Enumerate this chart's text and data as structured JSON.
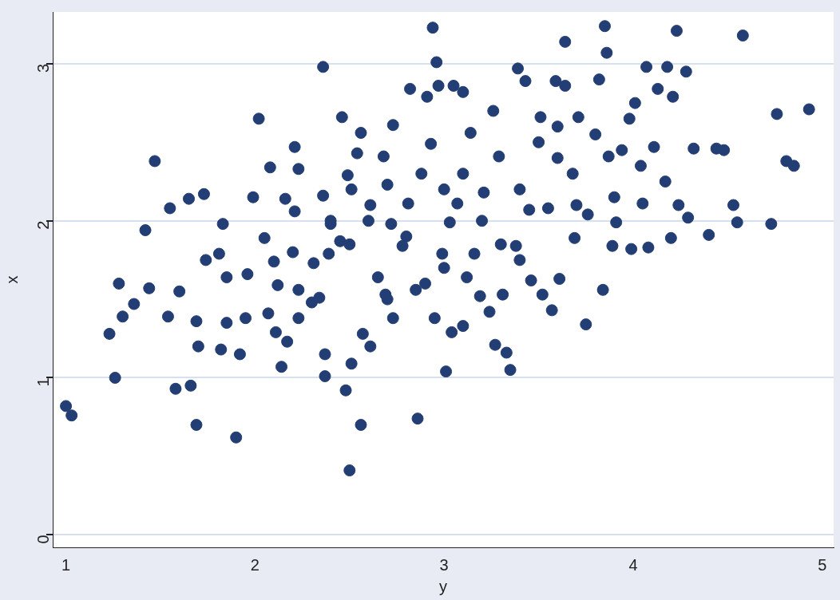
{
  "chart_data": {
    "type": "scatter",
    "xlabel": "y",
    "ylabel": "x",
    "xlim": [
      0.93,
      5.06
    ],
    "ylim": [
      -0.08,
      3.33
    ],
    "xticks": [
      1,
      2,
      3,
      4,
      5
    ],
    "yticks": [
      0,
      1,
      2,
      3
    ],
    "grid": "y",
    "marker": "circle",
    "legend": false,
    "series": [
      {
        "color": "#233e74",
        "x": [
          1.0,
          1.03,
          1.23,
          1.26,
          1.28,
          1.3,
          1.36,
          1.42,
          1.44,
          1.47,
          1.54,
          1.55,
          1.58,
          1.6,
          1.65,
          1.66,
          1.69,
          1.69,
          1.7,
          1.73,
          1.74,
          1.81,
          1.83,
          1.85,
          1.85,
          1.82,
          1.9,
          1.92,
          1.95,
          1.96,
          1.99,
          2.02,
          2.05,
          2.07,
          2.08,
          2.1,
          2.11,
          2.12,
          2.14,
          2.16,
          2.17,
          2.21,
          2.21,
          2.23,
          2.23,
          2.23,
          2.3,
          2.31,
          2.34,
          2.36,
          2.36,
          2.37,
          2.37,
          2.39,
          2.4,
          2.45,
          2.46,
          2.48,
          2.49,
          2.51,
          2.5,
          2.56,
          2.51,
          2.54,
          2.56,
          2.57,
          2.61,
          2.61,
          2.65,
          2.68,
          2.69,
          2.7,
          2.72,
          2.73,
          2.73,
          2.78,
          2.81,
          2.82,
          2.85,
          2.86,
          2.88,
          2.91,
          2.93,
          2.94,
          2.95,
          2.96,
          2.97,
          2.99,
          3.01,
          3.03,
          3.04,
          3.05,
          3.07,
          3.1,
          3.1,
          3.12,
          3.14,
          3.16,
          3.19,
          3.21,
          3.24,
          3.26,
          3.27,
          3.29,
          3.31,
          3.33,
          3.35,
          3.38,
          3.39,
          3.43,
          3.45,
          3.46,
          3.51,
          3.52,
          3.55,
          3.57,
          3.59,
          3.61,
          3.64,
          3.64,
          3.68,
          3.69,
          3.71,
          3.75,
          3.76,
          3.82,
          3.84,
          3.85,
          3.86,
          3.87,
          3.89,
          3.91,
          3.94,
          3.98,
          3.99,
          4.01,
          4.04,
          4.05,
          4.07,
          4.08,
          4.11,
          4.13,
          4.17,
          4.18,
          4.2,
          4.21,
          4.23,
          4.24,
          4.28,
          4.29,
          4.32,
          4.4,
          4.44,
          4.48,
          4.53,
          4.55,
          4.58,
          4.73,
          4.76,
          4.81,
          4.85,
          4.93,
          3.0,
          3.2,
          3.4,
          3.6,
          2.8,
          2.6,
          3.3,
          3.5,
          3.1,
          2.9,
          3.7,
          3.8,
          2.5,
          2.7,
          3.0,
          3.4,
          3.9,
          3.6,
          2.4,
          2.2
        ],
        "values": [
          0.82,
          0.76,
          1.28,
          1.0,
          1.6,
          1.39,
          1.47,
          1.94,
          1.57,
          2.38,
          1.39,
          2.08,
          0.93,
          1.55,
          2.14,
          0.95,
          0.7,
          1.36,
          1.2,
          2.17,
          1.75,
          1.79,
          1.98,
          1.64,
          1.35,
          1.18,
          0.62,
          1.15,
          1.38,
          1.66,
          2.15,
          2.65,
          1.89,
          1.41,
          2.34,
          1.74,
          1.29,
          1.59,
          1.07,
          2.14,
          1.23,
          2.06,
          2.47,
          2.33,
          1.56,
          1.38,
          1.48,
          1.73,
          1.51,
          2.98,
          2.16,
          1.15,
          1.01,
          1.79,
          1.98,
          1.87,
          2.66,
          0.92,
          2.29,
          2.2,
          0.41,
          0.7,
          1.09,
          2.43,
          2.56,
          1.28,
          1.2,
          2.1,
          1.64,
          2.41,
          1.53,
          2.23,
          1.98,
          2.61,
          1.38,
          1.84,
          2.11,
          2.84,
          1.56,
          0.74,
          2.3,
          2.79,
          2.49,
          3.23,
          1.38,
          3.01,
          2.86,
          1.79,
          1.04,
          1.99,
          1.29,
          2.86,
          2.11,
          2.82,
          1.33,
          1.64,
          2.56,
          1.79,
          1.52,
          2.18,
          1.42,
          2.7,
          1.21,
          2.41,
          1.53,
          1.16,
          1.05,
          1.84,
          2.97,
          2.89,
          2.07,
          1.62,
          2.66,
          1.53,
          2.08,
          1.43,
          2.89,
          1.63,
          3.14,
          2.86,
          2.3,
          1.89,
          2.66,
          1.34,
          2.04,
          2.9,
          1.56,
          3.24,
          3.07,
          2.41,
          1.84,
          1.99,
          2.45,
          2.65,
          1.82,
          2.75,
          2.35,
          2.11,
          2.98,
          1.83,
          2.47,
          2.84,
          2.25,
          2.98,
          1.89,
          2.79,
          3.21,
          2.1,
          2.95,
          2.02,
          2.46,
          1.91,
          2.46,
          2.45,
          2.1,
          1.99,
          3.18,
          1.98,
          2.68,
          2.38,
          2.35,
          2.71,
          2.2,
          2.0,
          2.2,
          2.4,
          1.9,
          2.0,
          1.85,
          2.5,
          2.3,
          1.6,
          2.1,
          2.55,
          1.85,
          1.5,
          1.7,
          1.75,
          2.15,
          2.6,
          2.0,
          1.8
        ]
      }
    ]
  }
}
